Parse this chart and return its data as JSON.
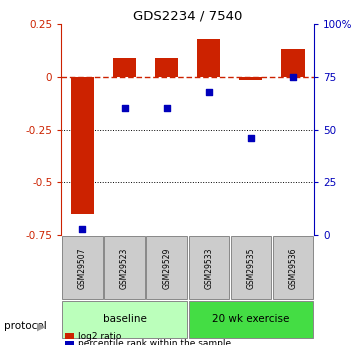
{
  "title": "GDS2234 / 7540",
  "samples": [
    "GSM29507",
    "GSM29523",
    "GSM29529",
    "GSM29533",
    "GSM29535",
    "GSM29536"
  ],
  "log2_ratio": [
    -0.65,
    0.09,
    0.09,
    0.18,
    -0.015,
    0.13
  ],
  "percentile_rank": [
    3,
    60,
    60,
    68,
    46,
    75
  ],
  "bar_color": "#cc2200",
  "dot_color": "#0000bb",
  "left_ylim": [
    -0.75,
    0.25
  ],
  "right_ylim": [
    0,
    100
  ],
  "left_yticks": [
    0.25,
    0,
    -0.25,
    -0.5,
    -0.75
  ],
  "right_yticks": [
    100,
    75,
    50,
    25,
    0
  ],
  "right_yticklabels": [
    "100%",
    "75",
    "50",
    "25",
    "0"
  ],
  "dotted_lines": [
    -0.25,
    -0.5
  ],
  "zero_line_color": "#cc2200",
  "sample_box_color": "#cccccc",
  "sample_box_edge": "#888888",
  "baseline_color": "#bbffbb",
  "exercise_color": "#44dd44",
  "baseline_label": "baseline",
  "exercise_label": "20 wk exercise",
  "protocol_label": "protocol",
  "legend_items": [
    {
      "label": "log2 ratio",
      "color": "#cc2200"
    },
    {
      "label": "percentile rank within the sample",
      "color": "#0000bb"
    }
  ]
}
